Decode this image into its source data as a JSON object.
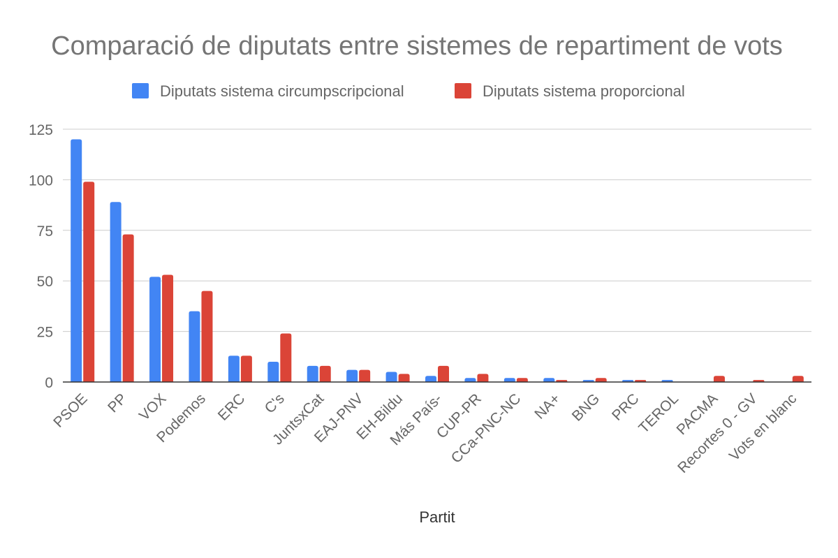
{
  "colors": {
    "series1": "#4285f4",
    "series2": "#db4437",
    "grid": "#cccccc",
    "axis": "#333333",
    "text": "#666666",
    "title": "#757575"
  },
  "chart_data": {
    "type": "bar",
    "title": "Comparació de diputats entre sistemes de repartiment de vots",
    "xlabel": "Partit",
    "ylabel": "",
    "ylim": [
      0,
      125
    ],
    "yticks": [
      0,
      25,
      50,
      75,
      100,
      125
    ],
    "grid": true,
    "legend_position": "top",
    "categories": [
      "PSOE",
      "PP",
      "VOX",
      "Podemos",
      "ERC",
      "C's",
      "JuntsxCat",
      "EAJ-PNV",
      "EH-Bildu",
      "Más País-",
      "CUP-PR",
      "CCa-PNC-NC",
      "NA+",
      "BNG",
      "PRC",
      "TEROL",
      "PACMA",
      "Recortes 0 - GV",
      "Vots en blanc"
    ],
    "series": [
      {
        "name": "Diputats sistema circumpscripcional",
        "values": [
          120,
          89,
          52,
          35,
          13,
          10,
          8,
          6,
          5,
          3,
          2,
          2,
          2,
          1,
          1,
          1,
          0,
          0,
          0
        ]
      },
      {
        "name": "Diputats sistema proporcional",
        "values": [
          99,
          73,
          53,
          45,
          13,
          24,
          8,
          6,
          4,
          8,
          4,
          2,
          1,
          2,
          1,
          0,
          3,
          1,
          3
        ]
      }
    ]
  }
}
